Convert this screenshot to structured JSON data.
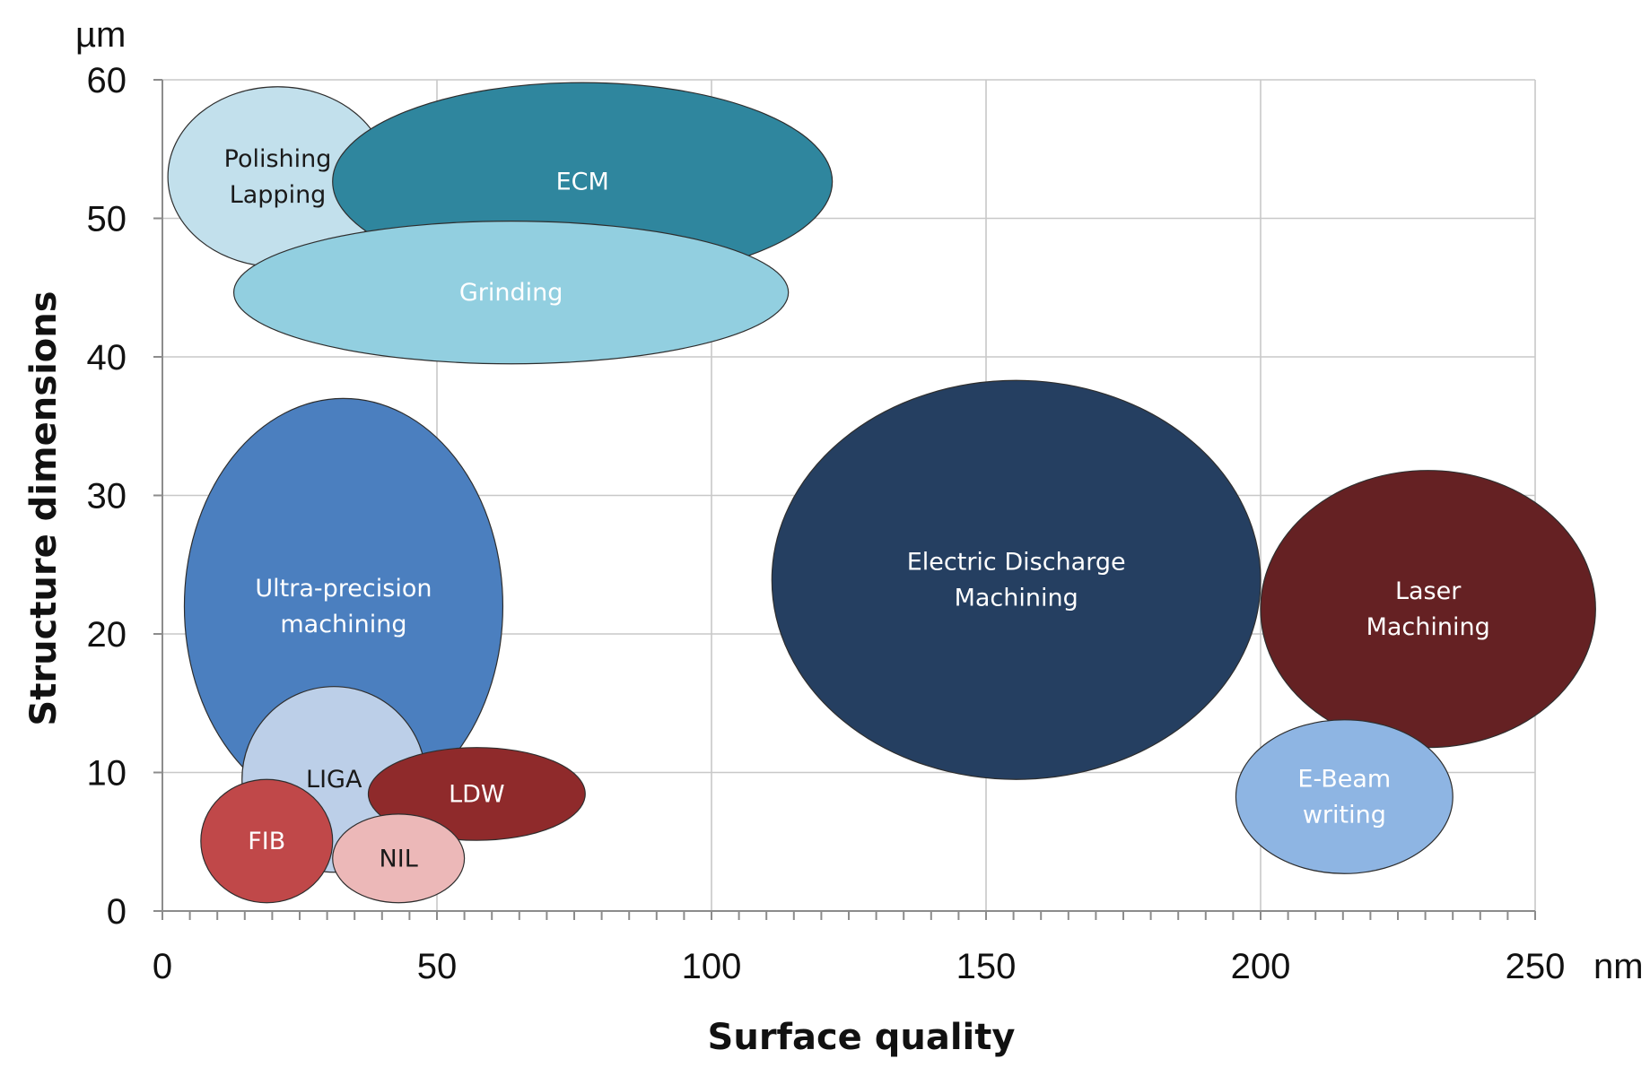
{
  "chart_data": {
    "type": "bubble",
    "xlabel": "Surface quality",
    "ylabel": "Structure dimensions",
    "x_unit": "nm",
    "y_unit": "µm",
    "xlim": [
      0,
      250
    ],
    "ylim": [
      0,
      60
    ],
    "x_ticks": [
      0,
      50,
      100,
      150,
      200,
      250
    ],
    "y_ticks": [
      0,
      10,
      20,
      30,
      40,
      50,
      60
    ],
    "x_tick_labels": [
      "0",
      "50",
      "100",
      "150",
      "200",
      "250"
    ],
    "y_tick_labels": [
      "0",
      "10",
      "20",
      "30",
      "40",
      "50",
      "60"
    ],
    "grid": true,
    "series": [
      {
        "label": [
          "Polishing",
          "Lapping"
        ],
        "x_min": 1,
        "x_max": 41,
        "y_min": 46.5,
        "y_max": 59.5,
        "color": "#c2e0ec",
        "text_color": "#1a1a1a"
      },
      {
        "label": [
          "ECM"
        ],
        "x_min": 31,
        "x_max": 122,
        "y_min": 45.5,
        "y_max": 59.8,
        "color": "#2f869e",
        "text_color": "#ffffff"
      },
      {
        "label": [
          "Grinding"
        ],
        "x_min": 13,
        "x_max": 114,
        "y_min": 39.5,
        "y_max": 49.8,
        "color": "#92cfe0",
        "text_color": "#ffffff"
      },
      {
        "label": [
          "Ultra-precision",
          "machining"
        ],
        "x_min": 4,
        "x_max": 62,
        "y_min": 7,
        "y_max": 37,
        "color": "#4b7fbf",
        "text_color": "#ffffff"
      },
      {
        "label": [
          "Electric Discharge",
          "Machining"
        ],
        "x_min": 111,
        "x_max": 200,
        "y_min": 9.5,
        "y_max": 38.3,
        "color": "#253f61",
        "text_color": "#ffffff"
      },
      {
        "label": [
          "Laser",
          "Machining"
        ],
        "x_min": 200,
        "x_max": 261,
        "y_min": 11.8,
        "y_max": 31.8,
        "color": "#652123",
        "text_color": "#ffffff"
      },
      {
        "label": [
          "E-Beam",
          "writing"
        ],
        "x_min": 195.5,
        "x_max": 235,
        "y_min": 2.7,
        "y_max": 13.8,
        "color": "#8eb5e3",
        "text_color": "#ffffff"
      },
      {
        "label": [
          "LIGA"
        ],
        "x_min": 14.5,
        "x_max": 48,
        "y_min": 2.8,
        "y_max": 16.2,
        "color": "#bccfe8",
        "text_color": "#1a1a1a"
      },
      {
        "label": [
          "LDW"
        ],
        "x_min": 37.5,
        "x_max": 77,
        "y_min": 5.1,
        "y_max": 11.8,
        "color": "#8f2a2b",
        "text_color": "#ffffff"
      },
      {
        "label": [
          "FIB"
        ],
        "x_min": 7,
        "x_max": 31,
        "y_min": 0.6,
        "y_max": 9.5,
        "color": "#c04849",
        "text_color": "#ffffff"
      },
      {
        "label": [
          "NIL"
        ],
        "x_min": 31,
        "x_max": 55,
        "y_min": 0.6,
        "y_max": 7,
        "color": "#ecb8b8",
        "text_color": "#1a1a1a"
      }
    ]
  }
}
